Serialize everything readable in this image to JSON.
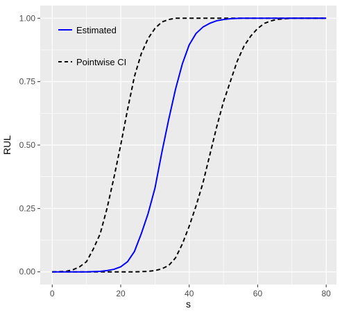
{
  "chart_data": {
    "type": "line",
    "title": "",
    "xlabel": "s",
    "ylabel": "RUL",
    "xlim": [
      -3.5,
      83
    ],
    "ylim": [
      -0.05,
      1.05
    ],
    "xticks": [
      0,
      20,
      40,
      60,
      80
    ],
    "xtick_labels": [
      "0",
      "20",
      "40",
      "60",
      "80"
    ],
    "yticks": [
      0.0,
      0.25,
      0.5,
      0.75,
      1.0
    ],
    "ytick_labels": [
      "0.00",
      "0.25",
      "0.50",
      "0.75",
      "1.00"
    ],
    "grid": true,
    "legend_position": "top-left",
    "panel_background": "#ebebeb",
    "grid_color": "#ffffff",
    "series": [
      {
        "name": "Estimated",
        "style": "solid",
        "color": "#0000ff",
        "x": [
          0,
          5,
          10,
          14,
          16,
          18,
          20,
          22,
          24,
          26,
          28,
          30,
          32,
          34,
          36,
          38,
          40,
          42,
          44,
          46,
          48,
          50,
          52,
          55,
          60,
          65,
          70,
          75,
          80
        ],
        "y": [
          0.0,
          0.0,
          0.0,
          0.002,
          0.005,
          0.01,
          0.02,
          0.04,
          0.08,
          0.15,
          0.23,
          0.33,
          0.47,
          0.6,
          0.72,
          0.82,
          0.895,
          0.94,
          0.965,
          0.98,
          0.99,
          0.995,
          0.998,
          1.0,
          1.0,
          1.0,
          1.0,
          1.0,
          1.0
        ]
      },
      {
        "name": "Pointwise CI",
        "style": "dashed",
        "color": "#000000",
        "x": [
          0,
          4,
          6,
          8,
          10,
          12,
          14,
          16,
          18,
          20,
          22,
          24,
          26,
          28,
          30,
          32,
          34,
          36,
          38,
          40,
          45,
          50,
          55,
          60,
          70,
          80
        ],
        "y": [
          0.0,
          0.002,
          0.008,
          0.02,
          0.04,
          0.09,
          0.15,
          0.25,
          0.37,
          0.5,
          0.64,
          0.77,
          0.86,
          0.92,
          0.96,
          0.985,
          0.995,
          1.0,
          1.0,
          1.0,
          1.0,
          1.0,
          1.0,
          1.0,
          1.0,
          1.0
        ]
      },
      {
        "name": "",
        "style": "dashed",
        "color": "#000000",
        "x": [
          0,
          20,
          24,
          28,
          30,
          32,
          34,
          36,
          38,
          40,
          42,
          44,
          46,
          48,
          50,
          52,
          54,
          56,
          58,
          60,
          62,
          64,
          66,
          70,
          75,
          80
        ],
        "y": [
          0.0,
          0.0,
          0.0,
          0.002,
          0.005,
          0.012,
          0.025,
          0.055,
          0.11,
          0.18,
          0.26,
          0.35,
          0.46,
          0.57,
          0.67,
          0.75,
          0.83,
          0.89,
          0.93,
          0.96,
          0.98,
          0.99,
          0.996,
          1.0,
          1.0,
          1.0
        ]
      }
    ]
  }
}
